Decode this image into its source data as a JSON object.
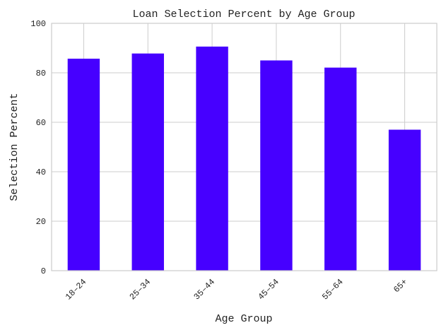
{
  "chart_data": {
    "type": "bar",
    "title": "Loan Selection Percent by Age Group",
    "xlabel": "Age Group",
    "ylabel": "Selection Percent",
    "categories": [
      "18–24",
      "25–34",
      "35–44",
      "45–54",
      "55–64",
      "65+"
    ],
    "values": [
      85.7,
      87.8,
      90.6,
      85.0,
      82.1,
      57.0
    ],
    "ylim": [
      0,
      100
    ],
    "yticks": [
      0,
      20,
      40,
      60,
      80,
      100
    ],
    "grid": true,
    "legend": "none",
    "bar_color": "#4600ff",
    "x_tick_rotation": 45
  }
}
